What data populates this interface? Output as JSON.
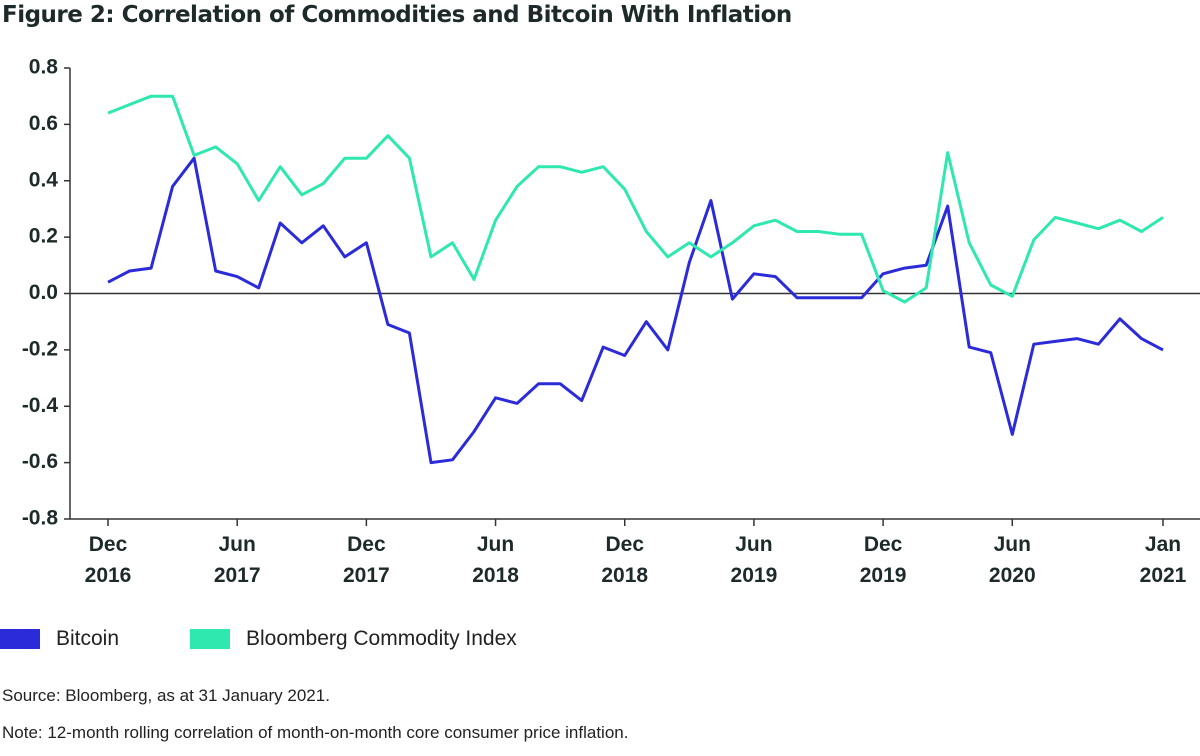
{
  "chart_data": {
    "type": "line",
    "title": "Figure 2: Correlation of Commodities and Bitcoin With Inflation",
    "categories": [
      "Dec 2016",
      null,
      null,
      null,
      null,
      null,
      "Jun 2017",
      null,
      null,
      null,
      null,
      null,
      "Dec 2017",
      null,
      null,
      null,
      null,
      null,
      "Jun 2018",
      null,
      null,
      null,
      null,
      null,
      "Dec 2018",
      null,
      null,
      null,
      null,
      null,
      "Jun 2019",
      null,
      null,
      null,
      null,
      null,
      "Dec 2019",
      null,
      null,
      null,
      null,
      null,
      "Jun 2020",
      null,
      null,
      null,
      null,
      null,
      null,
      "Jan 2021"
    ],
    "series": [
      {
        "name": "Bitcoin",
        "color": "#2b2bd9",
        "values": [
          0.04,
          0.08,
          0.09,
          0.38,
          0.48,
          0.08,
          0.06,
          0.02,
          0.25,
          0.18,
          0.24,
          0.13,
          0.18,
          -0.11,
          -0.14,
          -0.6,
          -0.59,
          -0.49,
          -0.37,
          -0.39,
          -0.32,
          -0.32,
          -0.38,
          -0.19,
          -0.22,
          -0.1,
          -0.2,
          0.11,
          0.33,
          -0.02,
          0.07,
          0.06,
          -0.015,
          -0.015,
          -0.015,
          -0.015,
          0.07,
          0.09,
          0.1,
          0.31,
          -0.19,
          -0.21,
          -0.5,
          -0.18,
          -0.17,
          -0.16,
          -0.18,
          -0.09,
          -0.16,
          -0.2
        ]
      },
      {
        "name": "Bloomberg Commodity Index",
        "color": "#2ee8b0",
        "values": [
          0.64,
          0.67,
          0.7,
          0.7,
          0.49,
          0.52,
          0.46,
          0.33,
          0.45,
          0.35,
          0.39,
          0.48,
          0.48,
          0.56,
          0.48,
          0.13,
          0.18,
          0.05,
          0.26,
          0.38,
          0.45,
          0.45,
          0.43,
          0.45,
          0.37,
          0.22,
          0.13,
          0.18,
          0.13,
          0.18,
          0.24,
          0.26,
          0.22,
          0.22,
          0.21,
          0.21,
          0.01,
          -0.03,
          0.02,
          0.5,
          0.18,
          0.03,
          -0.01,
          0.19,
          0.27,
          0.25,
          0.23,
          0.26,
          0.22,
          0.27
        ]
      }
    ],
    "ylim": [
      -0.8,
      0.8
    ],
    "yticks": [
      0.8,
      0.6,
      0.4,
      0.2,
      {
        "value": 0,
        "label": "0.0"
      },
      -0.2,
      -0.4,
      -0.6,
      -0.8
    ],
    "zero_line": true,
    "source": "Source: Bloomberg, as at 31 January 2021.",
    "note": "Note: 12-month rolling correlation of month-on-month core consumer price inflation."
  }
}
